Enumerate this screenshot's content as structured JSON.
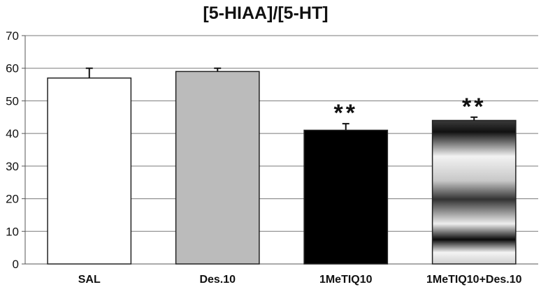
{
  "chart_data": {
    "type": "bar",
    "title": "[5-HIAA]/[5-HT]",
    "xlabel": "",
    "ylabel": "",
    "categories": [
      "SAL",
      "Des.10",
      "1MeTIQ10",
      "1MeTIQ10+Des.10"
    ],
    "values": [
      57,
      59,
      41,
      44
    ],
    "errors": [
      3,
      1,
      2,
      1
    ],
    "significance": [
      "",
      "",
      "**",
      "**"
    ],
    "ylim": [
      0,
      70
    ],
    "yticks": [
      0,
      10,
      20,
      30,
      40,
      50,
      60,
      70
    ],
    "grid": true,
    "legend": "none",
    "bar_fills": [
      "#ffffff",
      "#bbbbbb",
      "#000000",
      "gradient-banded"
    ]
  }
}
